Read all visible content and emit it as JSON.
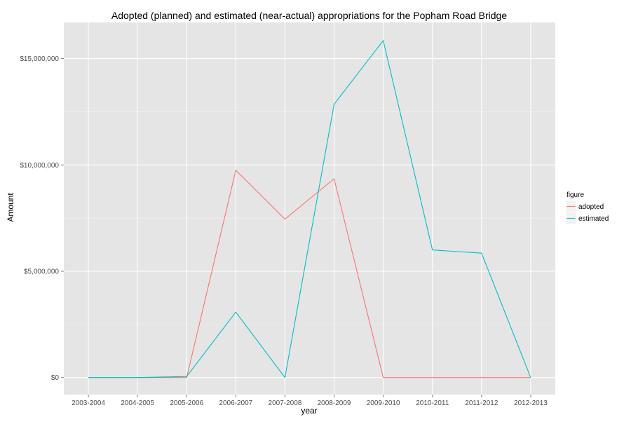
{
  "chart_data": {
    "type": "line",
    "title": "Adopted (planned) and estimated (near-actual) appropriations for the Popham Road Bridge",
    "xlabel": "year",
    "ylabel": "Amount",
    "categories": [
      "2003-2004",
      "2004-2005",
      "2005-2006",
      "2006-2007",
      "2007-2008",
      "2008-2009",
      "2009-2010",
      "2010-2011",
      "2011-2012",
      "2012-2013"
    ],
    "y_ticks": [
      0,
      5000000,
      10000000,
      15000000
    ],
    "y_tick_labels": [
      "$0",
      "$5,000,000",
      "$10,000,000",
      "$15,000,000"
    ],
    "ylim": [
      -800000,
      16700000
    ],
    "grid": true,
    "legend": {
      "title": "figure",
      "position": "right"
    },
    "series": [
      {
        "name": "adopted",
        "color": "#F8766D",
        "values": [
          0,
          0,
          0,
          9750000,
          7450000,
          9350000,
          0,
          0,
          0,
          0
        ]
      },
      {
        "name": "estimated",
        "color": "#00BFC4",
        "values": [
          0,
          0,
          50000,
          3080000,
          0,
          12850000,
          15850000,
          6000000,
          5850000,
          0
        ]
      }
    ],
    "colors": {
      "panel_bg": "#E5E5E5",
      "grid_major": "#FFFFFF",
      "grid_minor": "#F2F2F2",
      "tick_text": "#4D4D4D",
      "tick_mark": "#7F7F7F"
    }
  }
}
